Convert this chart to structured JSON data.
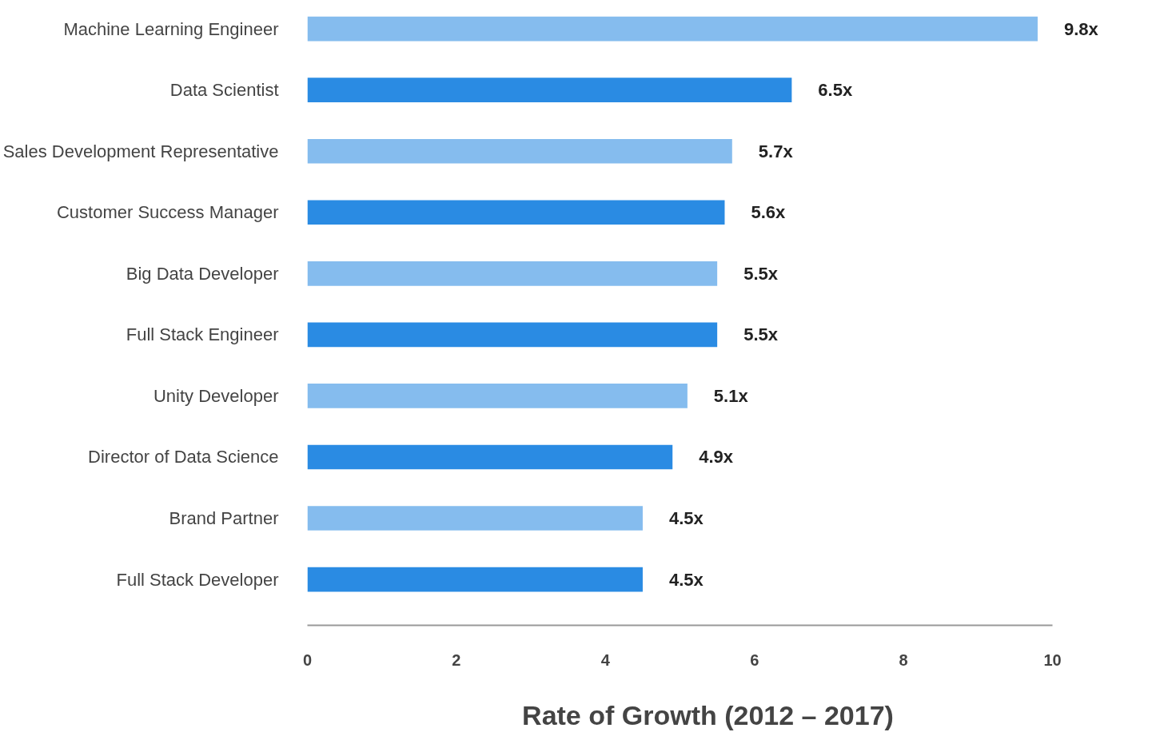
{
  "chart_data": {
    "type": "bar",
    "orientation": "horizontal",
    "xlabel": "Rate of Growth (2012 – 2017)",
    "categories": [
      "Machine Learning Engineer",
      "Data Scientist",
      "Sales Development Representative",
      "Customer Success Manager",
      "Big Data Developer",
      "Full Stack Engineer",
      "Unity Developer",
      "Director of Data Science",
      "Brand Partner",
      "Full Stack Developer"
    ],
    "values": [
      9.8,
      6.5,
      5.7,
      5.6,
      5.5,
      5.5,
      5.1,
      4.9,
      4.5,
      4.5
    ],
    "value_labels": [
      "9.8x",
      "6.5x",
      "5.7x",
      "5.6x",
      "5.5x",
      "5.5x",
      "5.1x",
      "4.9x",
      "4.5x",
      "4.5x"
    ],
    "colors": [
      "#85bcee",
      "#2a8be3",
      "#85bcee",
      "#2a8be3",
      "#85bcee",
      "#2a8be3",
      "#85bcee",
      "#2a8be3",
      "#85bcee",
      "#2a8be3"
    ],
    "xlim": [
      0,
      10
    ],
    "xticks": [
      0,
      2,
      4,
      6,
      8,
      10
    ],
    "grid": false,
    "legend": false
  }
}
